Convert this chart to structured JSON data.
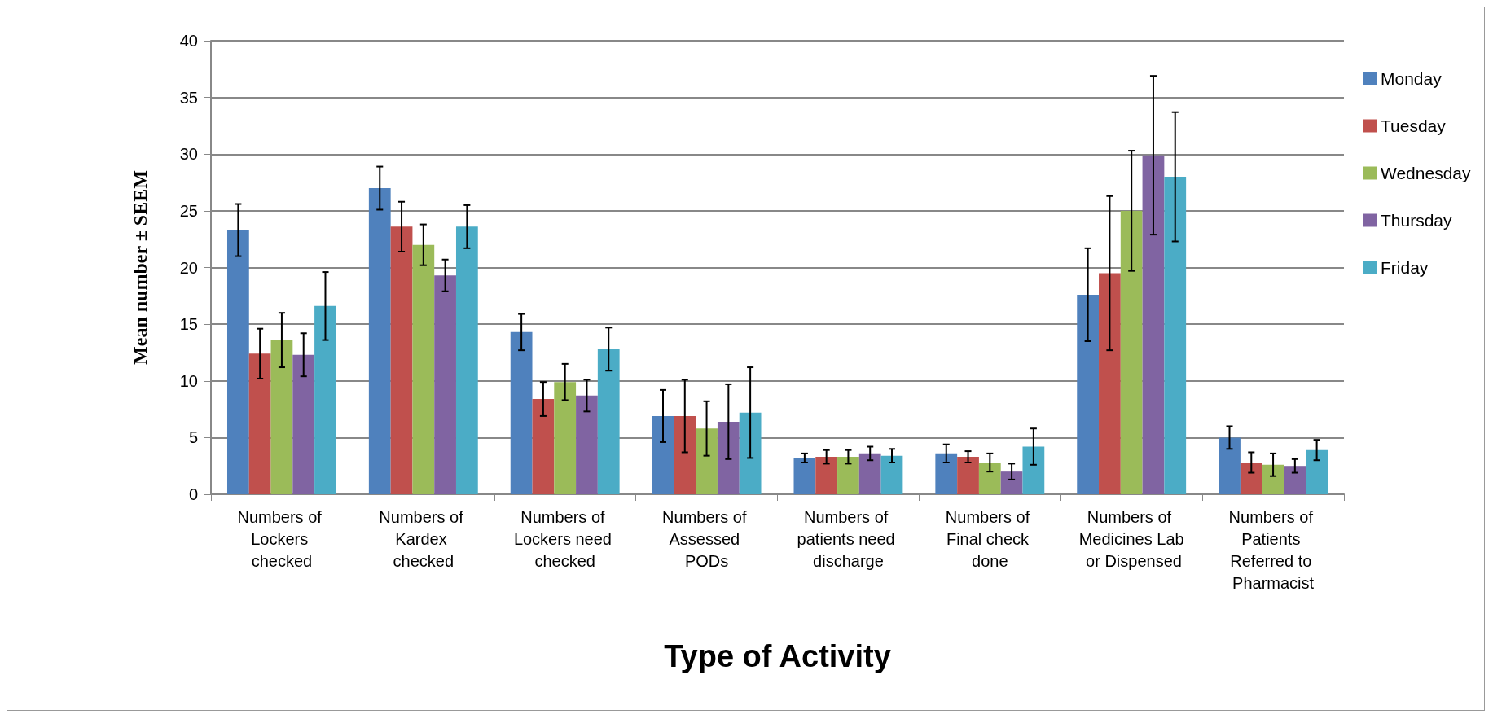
{
  "chart_data": {
    "type": "bar",
    "xlabel": "Type of Activity",
    "ylabel": "Mean number ± SEEM",
    "categories": [
      "Numbers of Lockers checked",
      "Numbers of Kardex checked",
      "Numbers of Lockers need checked",
      "Numbers of Assessed PODs",
      "Numbers of patients need discharge",
      "Numbers of Final check done",
      "Numbers of Medicines Lab or Dispensed",
      "Numbers of Patients Referred to Pharmacist"
    ],
    "series": [
      {
        "name": "Monday",
        "color": "#4f81bd",
        "values": [
          23.3,
          27.0,
          14.3,
          6.9,
          3.2,
          3.6,
          17.6,
          5.0
        ],
        "errors": [
          2.3,
          1.9,
          1.6,
          2.3,
          0.4,
          0.8,
          4.1,
          1.0
        ]
      },
      {
        "name": "Tuesday",
        "color": "#c0504d",
        "values": [
          12.4,
          23.6,
          8.4,
          6.9,
          3.3,
          3.3,
          19.5,
          2.8
        ],
        "errors": [
          2.2,
          2.2,
          1.5,
          3.2,
          0.6,
          0.5,
          6.8,
          0.9
        ]
      },
      {
        "name": "Wednesday",
        "color": "#9bbb59",
        "values": [
          13.6,
          22.0,
          9.9,
          5.8,
          3.3,
          2.8,
          25.0,
          2.6
        ],
        "errors": [
          2.4,
          1.8,
          1.6,
          2.4,
          0.6,
          0.8,
          5.3,
          1.0
        ]
      },
      {
        "name": "Thursday",
        "color": "#8064a2",
        "values": [
          12.3,
          19.3,
          8.7,
          6.4,
          3.6,
          2.0,
          29.9,
          2.5
        ],
        "errors": [
          1.9,
          1.4,
          1.4,
          3.3,
          0.6,
          0.7,
          7.0,
          0.6
        ]
      },
      {
        "name": "Friday",
        "color": "#4bacc6",
        "values": [
          16.6,
          23.6,
          12.8,
          7.2,
          3.4,
          4.2,
          28.0,
          3.9
        ],
        "errors": [
          3.0,
          1.9,
          1.9,
          4.0,
          0.6,
          1.6,
          5.7,
          0.9
        ]
      }
    ],
    "ylim": [
      0,
      40
    ],
    "yticks": [
      0,
      5,
      10,
      15,
      20,
      25,
      30,
      35,
      40
    ],
    "grid": "y",
    "legend": "right"
  }
}
